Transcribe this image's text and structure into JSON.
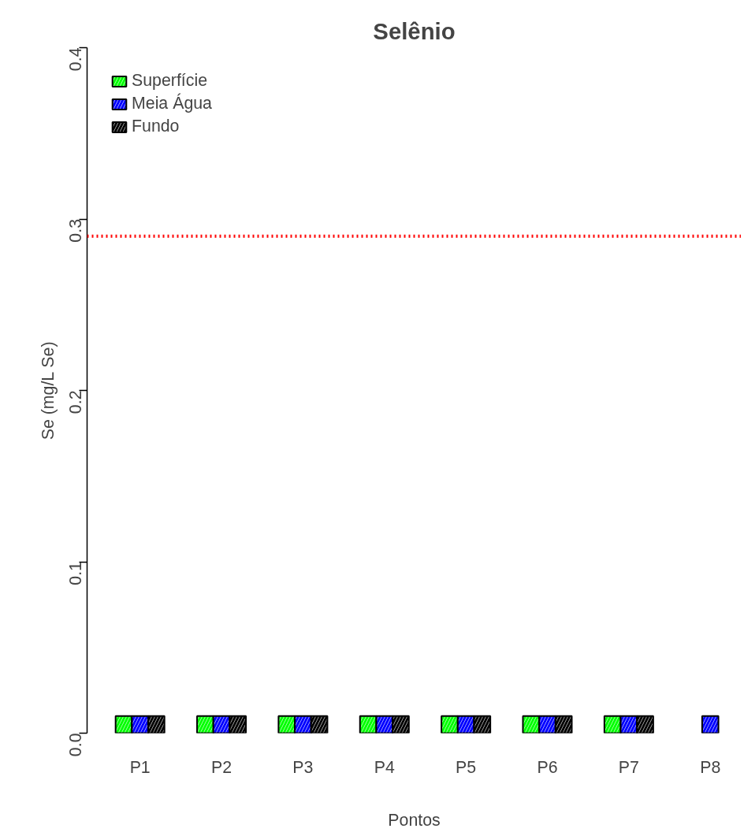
{
  "chart_data": {
    "type": "bar",
    "title": "Selênio",
    "xlabel": "Pontos",
    "ylabel": "Se (mg/L Se)",
    "categories": [
      "P1",
      "P2",
      "P3",
      "P4",
      "P5",
      "P6",
      "P7",
      "P8"
    ],
    "series": [
      {
        "name": "Superfície",
        "color": "#00ff00",
        "values": [
          0.01,
          0.01,
          0.01,
          0.01,
          0.01,
          0.01,
          0.01,
          null
        ]
      },
      {
        "name": "Meia Água",
        "color": "#0000ff",
        "values": [
          0.01,
          0.01,
          0.01,
          0.01,
          0.01,
          0.01,
          0.01,
          0.01
        ]
      },
      {
        "name": "Fundo",
        "color": "#000000",
        "values": [
          0.01,
          0.01,
          0.01,
          0.01,
          0.01,
          0.01,
          0.01,
          null
        ]
      }
    ],
    "ylim": [
      0,
      0.4
    ],
    "yticks": [
      {
        "value": 0,
        "label": "0.0"
      },
      {
        "value": 0.1,
        "label": "0.1"
      },
      {
        "value": 0.2,
        "label": "0.2"
      },
      {
        "value": 0.3,
        "label": "0.3"
      },
      {
        "value": 0.4,
        "label": "0.4"
      }
    ],
    "ref_lines": [
      {
        "axis": "y",
        "value": 0.29,
        "color": "#ff0000",
        "line_style": "dotted"
      }
    ],
    "legend": "top left",
    "grid": false
  }
}
